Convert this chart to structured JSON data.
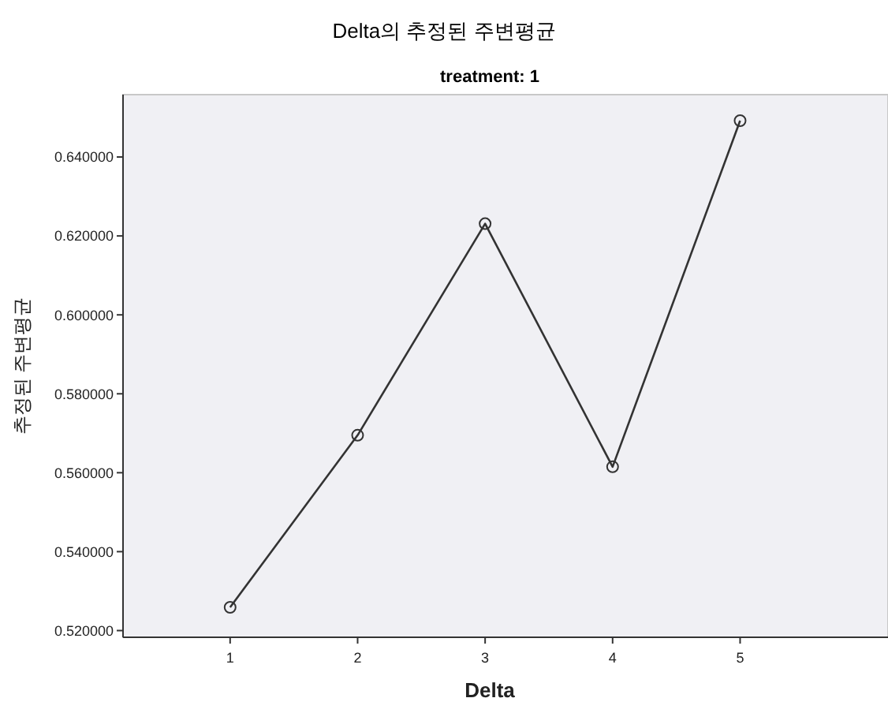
{
  "chart_data": {
    "type": "line",
    "title": "Delta의 추정된 주변평균",
    "subtitle": "treatment: 1",
    "xlabel": "Delta",
    "ylabel": "추정된 주변평균",
    "x": [
      1,
      2,
      3,
      4,
      5
    ],
    "values": [
      0.5259,
      0.5695,
      0.6231,
      0.5615,
      0.6492
    ],
    "color": "#333333",
    "xlim": [
      0.16,
      6.16
    ],
    "xticks": [
      1,
      2,
      3,
      4,
      5
    ],
    "ylim": [
      0.5183,
      0.6558
    ],
    "yticks": [
      {
        "value": 0.52,
        "label": "0.520000"
      },
      {
        "value": 0.54,
        "label": "0.540000"
      },
      {
        "value": 0.56,
        "label": "0.560000"
      },
      {
        "value": 0.58,
        "label": "0.580000"
      },
      {
        "value": 0.6,
        "label": "0.600000"
      },
      {
        "value": 0.62,
        "label": "0.620000"
      },
      {
        "value": 0.64,
        "label": "0.640000"
      }
    ],
    "grid": false,
    "marker": "circle",
    "line_style": "solid"
  }
}
